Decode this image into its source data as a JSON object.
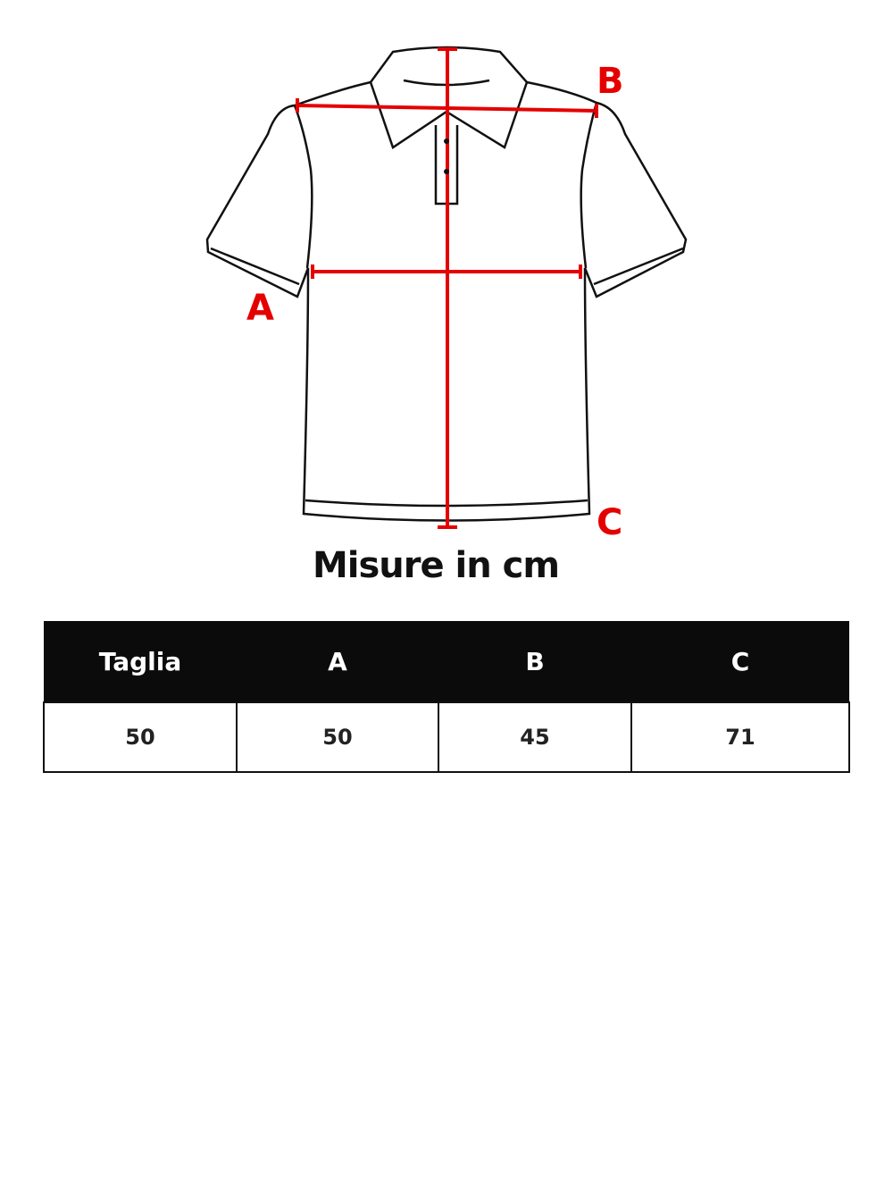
{
  "labels": {
    "a": "A",
    "b": "B",
    "c": "C"
  },
  "title": "Misure in cm",
  "table": {
    "headers": [
      "Taglia",
      "A",
      "B",
      "C"
    ],
    "rows": [
      [
        "50",
        "50",
        "45",
        "71"
      ]
    ]
  },
  "colors": {
    "measure": "#e50000",
    "header_bg": "#0b0b0b"
  }
}
